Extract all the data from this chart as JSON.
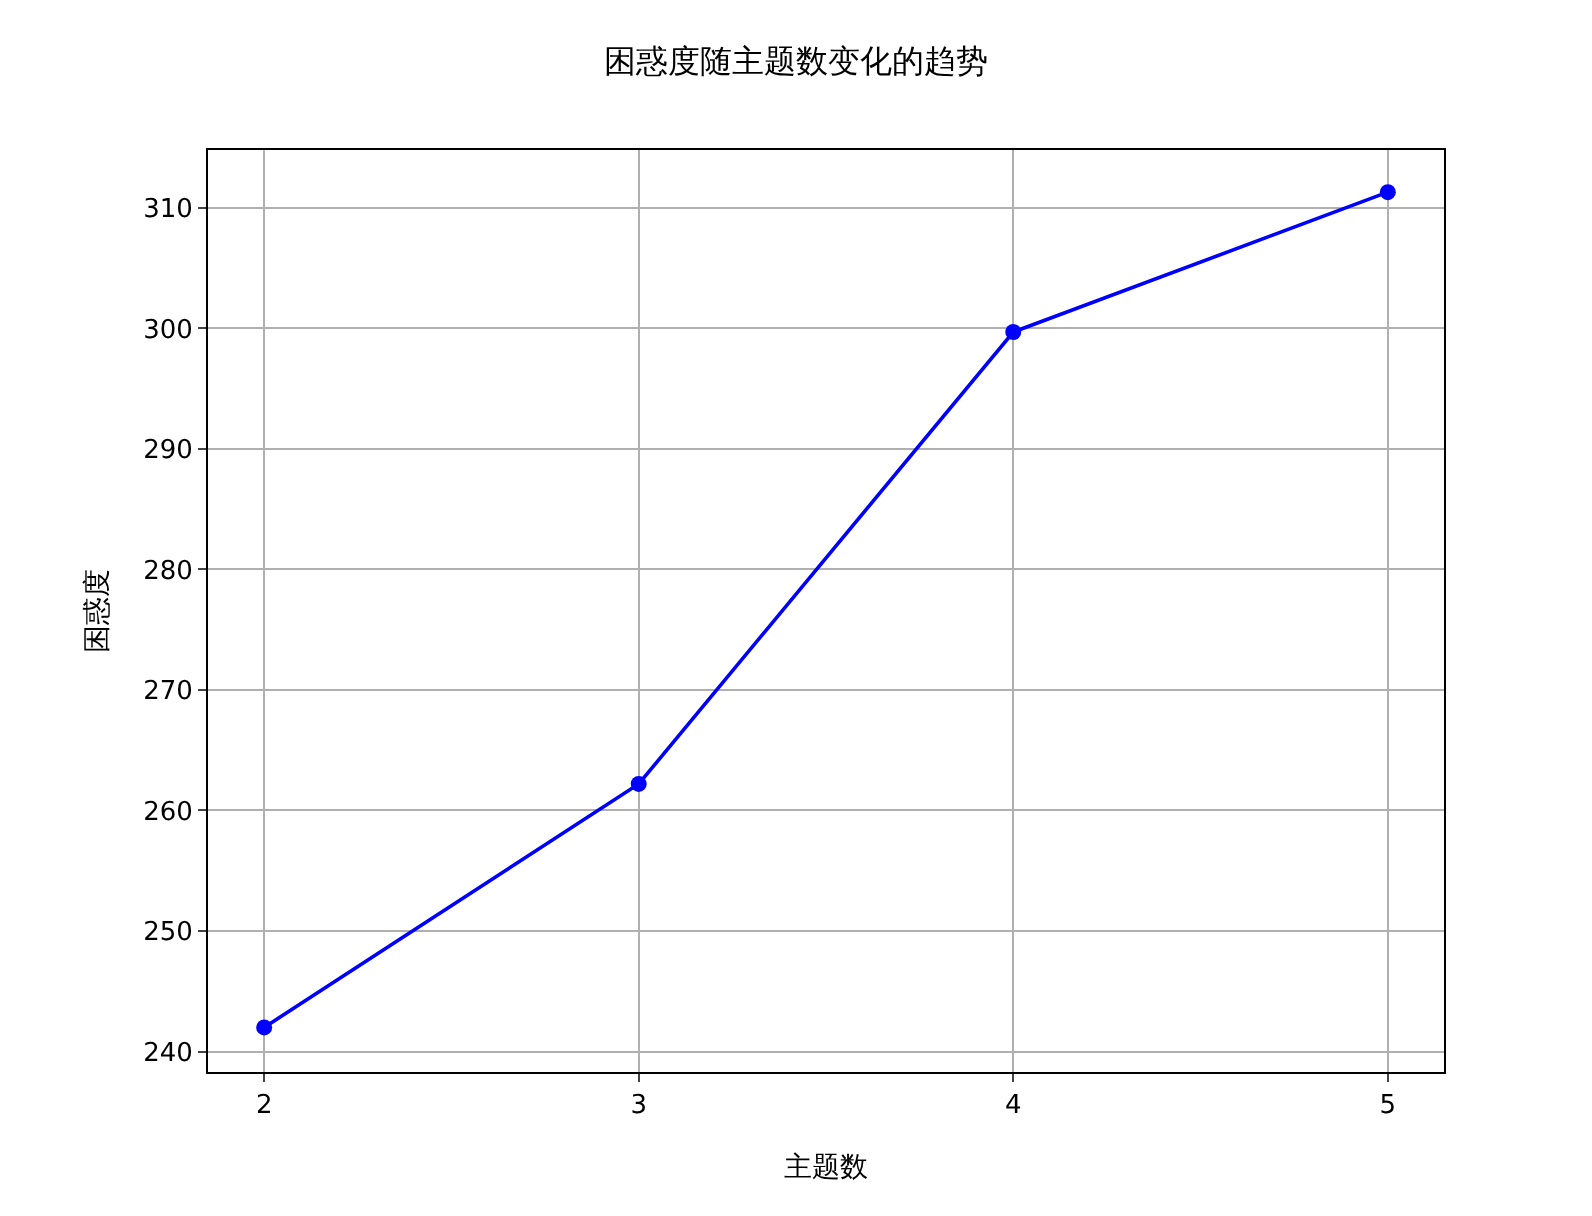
{
  "chart_data": {
    "type": "line",
    "title": "困惑度随主题数变化的趋势",
    "xlabel": "主题数",
    "ylabel": "困惑度",
    "x": [
      2,
      3,
      4,
      5
    ],
    "series": [
      {
        "color": "#0000ff",
        "values": [
          242.0,
          262.2,
          299.7,
          311.3
        ]
      }
    ],
    "xlim": [
      1.85,
      5.15
    ],
    "xticks": [
      2,
      3,
      4,
      5
    ],
    "ylim": [
      238.3,
      314.8
    ],
    "yticks": [
      240,
      250,
      260,
      270,
      280,
      290,
      300,
      310
    ],
    "grid": true,
    "legend": false,
    "marker": "circle",
    "line_style": "solid"
  }
}
